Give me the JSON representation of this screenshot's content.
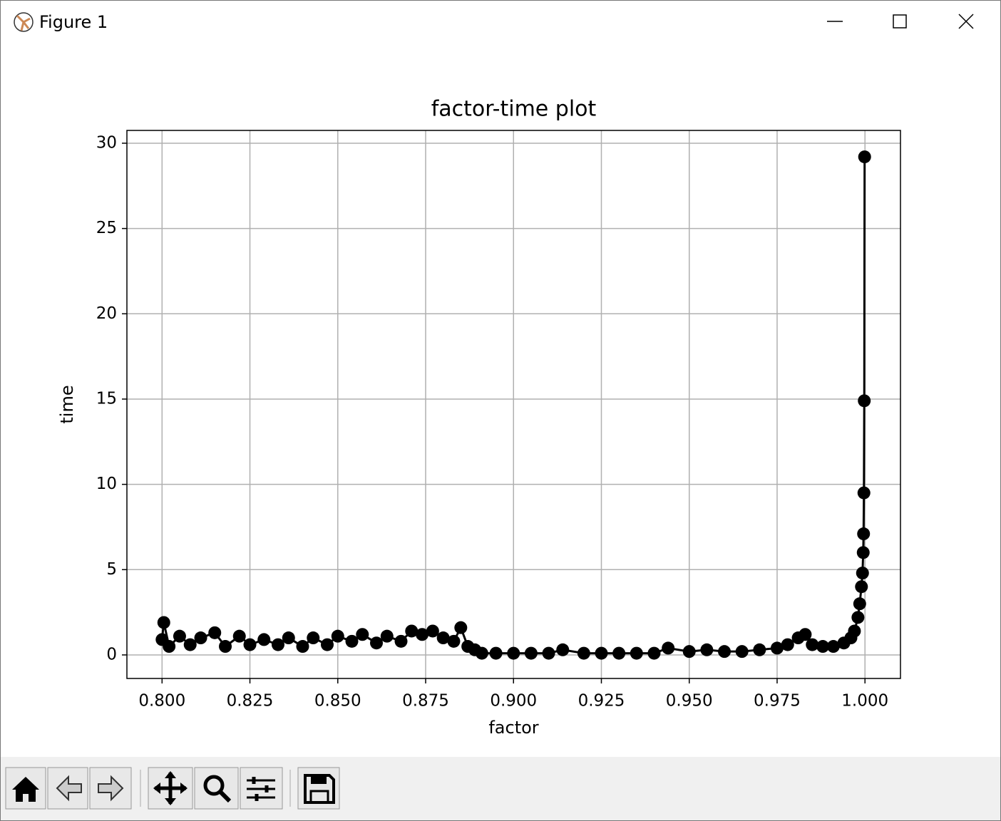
{
  "window": {
    "title": "Figure 1"
  },
  "chart_data": {
    "type": "line",
    "title": "factor-time plot",
    "x_label": "factor",
    "y_label": "time",
    "x": [
      0.8,
      0.8005,
      0.802,
      0.805,
      0.808,
      0.811,
      0.815,
      0.818,
      0.822,
      0.825,
      0.829,
      0.833,
      0.836,
      0.84,
      0.843,
      0.847,
      0.85,
      0.854,
      0.857,
      0.861,
      0.864,
      0.868,
      0.871,
      0.874,
      0.877,
      0.88,
      0.883,
      0.885,
      0.887,
      0.889,
      0.891,
      0.895,
      0.9,
      0.905,
      0.91,
      0.914,
      0.92,
      0.925,
      0.93,
      0.935,
      0.94,
      0.944,
      0.95,
      0.955,
      0.96,
      0.965,
      0.97,
      0.975,
      0.978,
      0.981,
      0.983,
      0.985,
      0.988,
      0.991,
      0.994,
      0.996,
      0.997,
      0.998,
      0.9985,
      0.999,
      0.9993,
      0.9995,
      0.9996,
      0.9997,
      0.9998,
      0.9999
    ],
    "series": [
      {
        "name": "time",
        "color": "#000000",
        "values": [
          0.9,
          1.9,
          0.5,
          1.1,
          0.6,
          1.0,
          1.3,
          0.5,
          1.1,
          0.6,
          0.9,
          0.6,
          1.0,
          0.5,
          1.0,
          0.6,
          1.1,
          0.8,
          1.2,
          0.7,
          1.1,
          0.8,
          1.4,
          1.2,
          1.4,
          1.0,
          0.8,
          1.6,
          0.5,
          0.3,
          0.1,
          0.1,
          0.1,
          0.1,
          0.1,
          0.3,
          0.1,
          0.1,
          0.1,
          0.1,
          0.1,
          0.4,
          0.2,
          0.3,
          0.2,
          0.2,
          0.3,
          0.4,
          0.6,
          1.0,
          1.2,
          0.6,
          0.5,
          0.5,
          0.7,
          1.0,
          1.4,
          2.2,
          3.0,
          4.0,
          4.8,
          6.0,
          7.1,
          9.5,
          14.9,
          29.2
        ]
      }
    ],
    "xlim": [
      0.79,
      1.0101
    ],
    "ylim": [
      -1.38,
      30.75
    ],
    "xticks": [
      {
        "value": 0.8,
        "label": "0.800"
      },
      {
        "value": 0.825,
        "label": "0.825"
      },
      {
        "value": 0.85,
        "label": "0.850"
      },
      {
        "value": 0.875,
        "label": "0.875"
      },
      {
        "value": 0.9,
        "label": "0.900"
      },
      {
        "value": 0.925,
        "label": "0.925"
      },
      {
        "value": 0.95,
        "label": "0.950"
      },
      {
        "value": 0.975,
        "label": "0.975"
      },
      {
        "value": 1.0,
        "label": "1.000"
      }
    ],
    "yticks": [
      0,
      5,
      10,
      15,
      20,
      25,
      30
    ],
    "grid": true
  }
}
